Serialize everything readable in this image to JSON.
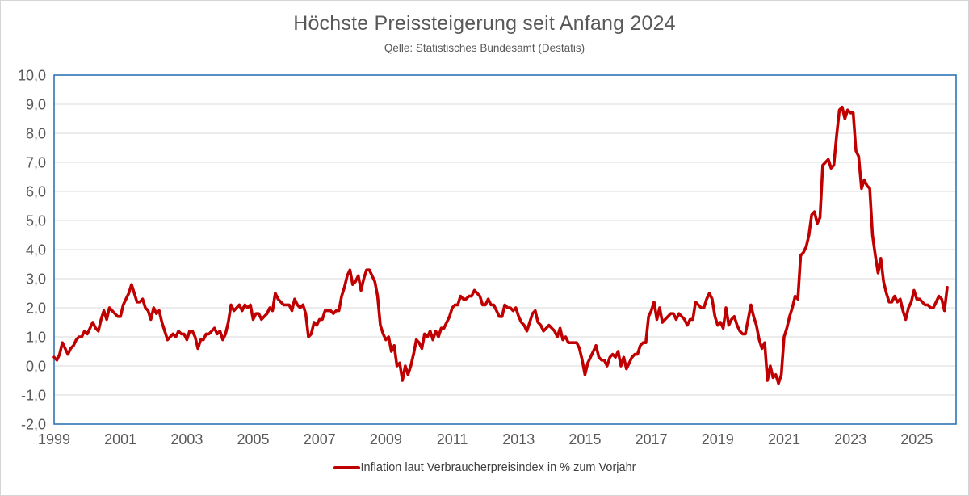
{
  "header": {
    "title": "Höchste Preissteigerung seit Anfang 2024",
    "subtitle": "Qelle: Statistisches Bundesamt (Destatis)"
  },
  "legend": {
    "label": "Inflation laut Verbraucherpreisindex in % zum Vorjahr"
  },
  "colors": {
    "line": "#C00000",
    "plot_border": "#2E75B6",
    "gridline": "#D9D9D9",
    "axis_text": "#595959",
    "legend_text": "#3F3F3F"
  },
  "chart_data": {
    "type": "line",
    "title": "Höchste Preissteigerung seit Anfang 2024",
    "subtitle": "Qelle: Statistisches Bundesamt (Destatis)",
    "frequency": "monthly",
    "x_start": "1999-01",
    "x_end": "2025-12",
    "ylim": [
      -2,
      10
    ],
    "grid": "horizontal",
    "legend_position": "bottom",
    "y_ticks": [
      {
        "value": 10,
        "label": "10,0"
      },
      {
        "value": 9,
        "label": "9,0"
      },
      {
        "value": 8,
        "label": "8,0"
      },
      {
        "value": 7,
        "label": "7,0"
      },
      {
        "value": 6,
        "label": "6,0"
      },
      {
        "value": 5,
        "label": "5,0"
      },
      {
        "value": 4,
        "label": "4,0"
      },
      {
        "value": 3,
        "label": "3,0"
      },
      {
        "value": 2,
        "label": "2,0"
      },
      {
        "value": 1,
        "label": "1,0"
      },
      {
        "value": 0,
        "label": "0,0"
      },
      {
        "value": -1,
        "label": "-1,0"
      },
      {
        "value": -2,
        "label": "-2,0"
      }
    ],
    "x_ticks": [
      {
        "label": "1999",
        "month_index": 0
      },
      {
        "label": "2001",
        "month_index": 24
      },
      {
        "label": "2003",
        "month_index": 48
      },
      {
        "label": "2005",
        "month_index": 72
      },
      {
        "label": "2007",
        "month_index": 96
      },
      {
        "label": "2009",
        "month_index": 120
      },
      {
        "label": "2011",
        "month_index": 144
      },
      {
        "label": "2013",
        "month_index": 168
      },
      {
        "label": "2015",
        "month_index": 192
      },
      {
        "label": "2017",
        "month_index": 216
      },
      {
        "label": "2019",
        "month_index": 240
      },
      {
        "label": "2021",
        "month_index": 264
      },
      {
        "label": "2023",
        "month_index": 288
      },
      {
        "label": "2025",
        "month_index": 312
      }
    ],
    "series": [
      {
        "name": "Inflation laut Verbraucherpreisindex in % zum Vorjahr",
        "values": [
          0.3,
          0.2,
          0.4,
          0.8,
          0.6,
          0.4,
          0.6,
          0.7,
          0.9,
          1.0,
          1.0,
          1.2,
          1.1,
          1.3,
          1.5,
          1.3,
          1.2,
          1.6,
          1.9,
          1.6,
          2.0,
          1.9,
          1.8,
          1.7,
          1.7,
          2.1,
          2.3,
          2.5,
          2.8,
          2.5,
          2.2,
          2.2,
          2.3,
          2.0,
          1.9,
          1.6,
          2.0,
          1.8,
          1.9,
          1.5,
          1.2,
          0.9,
          1.0,
          1.1,
          1.0,
          1.2,
          1.1,
          1.1,
          0.9,
          1.2,
          1.2,
          1.0,
          0.6,
          0.9,
          0.9,
          1.1,
          1.1,
          1.2,
          1.3,
          1.1,
          1.2,
          0.9,
          1.1,
          1.5,
          2.1,
          1.9,
          2.0,
          2.1,
          1.9,
          2.1,
          2.0,
          2.1,
          1.6,
          1.8,
          1.8,
          1.6,
          1.7,
          1.8,
          2.0,
          1.9,
          2.5,
          2.3,
          2.2,
          2.1,
          2.1,
          2.1,
          1.9,
          2.3,
          2.1,
          2.0,
          2.1,
          1.8,
          1.0,
          1.1,
          1.5,
          1.4,
          1.6,
          1.6,
          1.9,
          1.9,
          1.9,
          1.8,
          1.9,
          1.9,
          2.4,
          2.7,
          3.1,
          3.3,
          2.8,
          2.9,
          3.1,
          2.6,
          3.0,
          3.3,
          3.3,
          3.1,
          2.9,
          2.4,
          1.4,
          1.1,
          0.9,
          1.0,
          0.5,
          0.7,
          0.0,
          0.1,
          -0.5,
          0.0,
          -0.3,
          0.0,
          0.4,
          0.9,
          0.8,
          0.6,
          1.1,
          1.0,
          1.2,
          0.9,
          1.2,
          1.0,
          1.3,
          1.3,
          1.5,
          1.7,
          2.0,
          2.1,
          2.1,
          2.4,
          2.3,
          2.3,
          2.4,
          2.4,
          2.6,
          2.5,
          2.4,
          2.1,
          2.1,
          2.3,
          2.1,
          2.1,
          1.9,
          1.7,
          1.7,
          2.1,
          2.0,
          2.0,
          1.9,
          2.0,
          1.7,
          1.5,
          1.4,
          1.2,
          1.5,
          1.8,
          1.9,
          1.5,
          1.4,
          1.2,
          1.3,
          1.4,
          1.3,
          1.2,
          1.0,
          1.3,
          0.9,
          1.0,
          0.8,
          0.8,
          0.8,
          0.8,
          0.6,
          0.2,
          -0.3,
          0.1,
          0.3,
          0.5,
          0.7,
          0.3,
          0.2,
          0.2,
          0.0,
          0.3,
          0.4,
          0.3,
          0.5,
          0.0,
          0.3,
          -0.1,
          0.1,
          0.3,
          0.4,
          0.4,
          0.7,
          0.8,
          0.8,
          1.7,
          1.9,
          2.2,
          1.6,
          2.0,
          1.5,
          1.6,
          1.7,
          1.8,
          1.8,
          1.6,
          1.8,
          1.7,
          1.6,
          1.4,
          1.6,
          1.6,
          2.2,
          2.1,
          2.0,
          2.0,
          2.3,
          2.5,
          2.3,
          1.7,
          1.4,
          1.5,
          1.3,
          2.0,
          1.4,
          1.6,
          1.7,
          1.4,
          1.2,
          1.1,
          1.1,
          1.6,
          2.1,
          1.7,
          1.4,
          0.9,
          0.6,
          0.8,
          -0.5,
          0.0,
          -0.4,
          -0.3,
          -0.6,
          -0.3,
          1.0,
          1.3,
          1.7,
          2.0,
          2.4,
          2.3,
          3.8,
          3.9,
          4.1,
          4.5,
          5.2,
          5.3,
          4.9,
          5.1,
          6.9,
          7.0,
          7.1,
          6.8,
          6.9,
          7.9,
          8.8,
          8.9,
          8.5,
          8.8,
          8.7,
          8.7,
          7.4,
          7.2,
          6.1,
          6.4,
          6.2,
          6.1,
          4.5,
          3.8,
          3.2,
          3.7,
          2.9,
          2.5,
          2.2,
          2.2,
          2.4,
          2.2,
          2.3,
          1.9,
          1.6,
          2.0,
          2.2,
          2.6,
          2.3,
          2.3,
          2.2,
          2.1,
          2.1,
          2.0,
          2.0,
          2.2,
          2.4,
          2.3,
          1.9,
          2.7
        ]
      }
    ]
  }
}
